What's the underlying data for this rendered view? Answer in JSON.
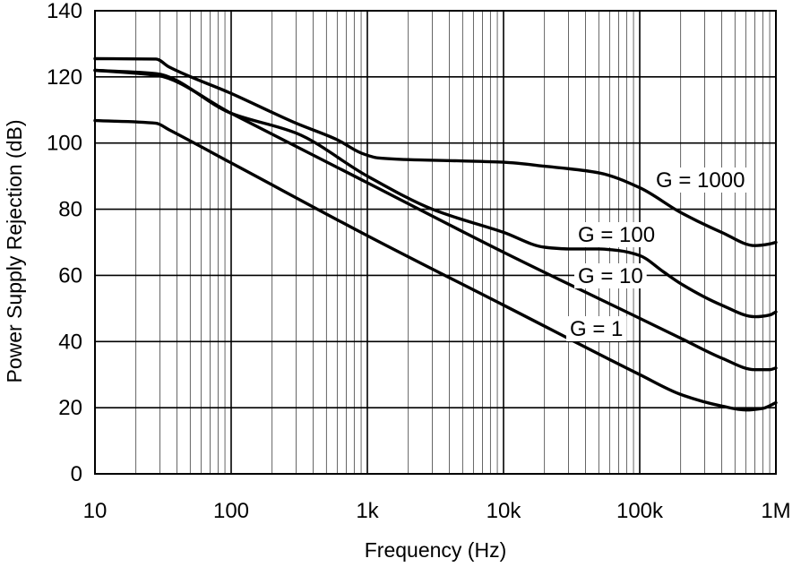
{
  "chart_data": {
    "type": "line",
    "title": "",
    "xlabel": "Frequency (Hz)",
    "ylabel": "Power Supply Rejection (dB)",
    "xscale": "log",
    "xlim": [
      10,
      1000000
    ],
    "ylim": [
      0,
      140
    ],
    "grid": true,
    "x_ticks": [
      10,
      100,
      1000,
      10000,
      100000,
      1000000
    ],
    "x_tick_labels": [
      "10",
      "100",
      "1k",
      "10k",
      "100k",
      "1M"
    ],
    "y_ticks": [
      0,
      20,
      40,
      60,
      80,
      100,
      120,
      140
    ],
    "y_tick_labels": [
      "0",
      "20",
      "40",
      "60",
      "80",
      "100",
      "120",
      "140"
    ],
    "series": [
      {
        "name": "G = 1000",
        "points": [
          [
            10,
            125.5
          ],
          [
            28,
            125.4
          ],
          [
            35,
            123
          ],
          [
            100,
            115
          ],
          [
            300,
            106
          ],
          [
            600,
            101
          ],
          [
            900,
            97
          ],
          [
            1200,
            95.5
          ],
          [
            2000,
            95
          ],
          [
            5000,
            94.6
          ],
          [
            10000,
            94.2
          ],
          [
            20000,
            93
          ],
          [
            50000,
            91
          ],
          [
            100000,
            86.5
          ],
          [
            200000,
            79
          ],
          [
            400000,
            73
          ],
          [
            700000,
            69
          ],
          [
            900000,
            69.5
          ],
          [
            1000000,
            70
          ]
        ]
      },
      {
        "name": "G = 100",
        "points": [
          [
            10,
            122
          ],
          [
            28,
            121
          ],
          [
            100,
            109
          ],
          [
            300,
            103
          ],
          [
            1000,
            90
          ],
          [
            3000,
            80
          ],
          [
            10000,
            73
          ],
          [
            20000,
            68.5
          ],
          [
            30000,
            68
          ],
          [
            50000,
            68
          ],
          [
            70000,
            67.5
          ],
          [
            100000,
            66
          ],
          [
            150000,
            61
          ],
          [
            200000,
            57.5
          ],
          [
            400000,
            51
          ],
          [
            700000,
            47.5
          ],
          [
            900000,
            48
          ],
          [
            1000000,
            49
          ]
        ]
      },
      {
        "name": "G = 10",
        "points": [
          [
            10,
            122
          ],
          [
            28,
            120.5
          ],
          [
            100,
            109
          ],
          [
            1000,
            88
          ],
          [
            10000,
            67
          ],
          [
            100000,
            47
          ],
          [
            200000,
            41
          ],
          [
            400000,
            35
          ],
          [
            700000,
            31.5
          ],
          [
            900000,
            31.5
          ],
          [
            1000000,
            32
          ]
        ]
      },
      {
        "name": "G = 1",
        "points": [
          [
            10,
            106.8
          ],
          [
            28,
            106
          ],
          [
            35,
            104
          ],
          [
            100,
            94
          ],
          [
            1000,
            72
          ],
          [
            10000,
            51
          ],
          [
            100000,
            30
          ],
          [
            200000,
            24
          ],
          [
            400000,
            20.5
          ],
          [
            600000,
            19.3
          ],
          [
            800000,
            19.8
          ],
          [
            1000000,
            21.5
          ]
        ]
      }
    ]
  }
}
